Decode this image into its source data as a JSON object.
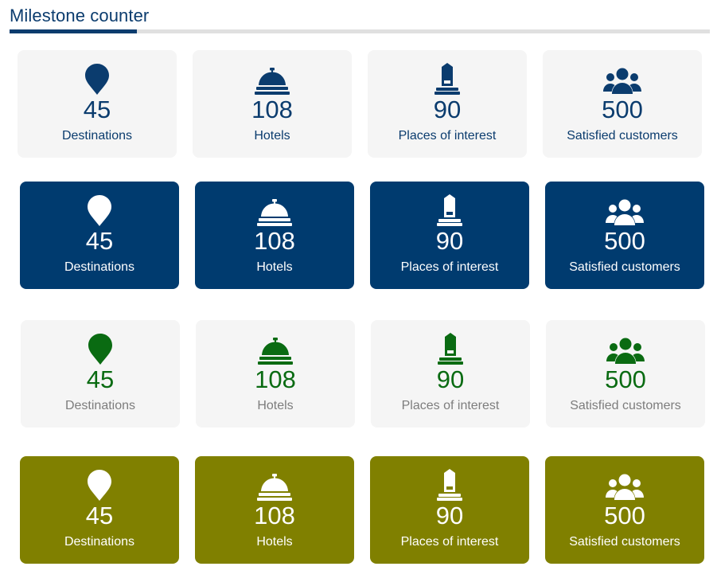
{
  "heading": "Milestone counter",
  "colors": {
    "primary": "#0b3c6e",
    "solid_blue": "#003b6f",
    "green": "#0a6b12",
    "olive": "#808000",
    "card_bg": "#f5f5f5"
  },
  "counters": [
    {
      "icon": "map-pin-icon",
      "value": "45",
      "label": "Destinations"
    },
    {
      "icon": "hotel-bell-icon",
      "value": "108",
      "label": "Hotels"
    },
    {
      "icon": "monument-icon",
      "value": "90",
      "label": "Places of interest"
    },
    {
      "icon": "users-icon",
      "value": "500",
      "label": "Satisfied customers"
    }
  ],
  "rows": [
    {
      "style": "light-blue"
    },
    {
      "style": "solid-blue"
    },
    {
      "style": "light-green"
    },
    {
      "style": "olive"
    }
  ]
}
